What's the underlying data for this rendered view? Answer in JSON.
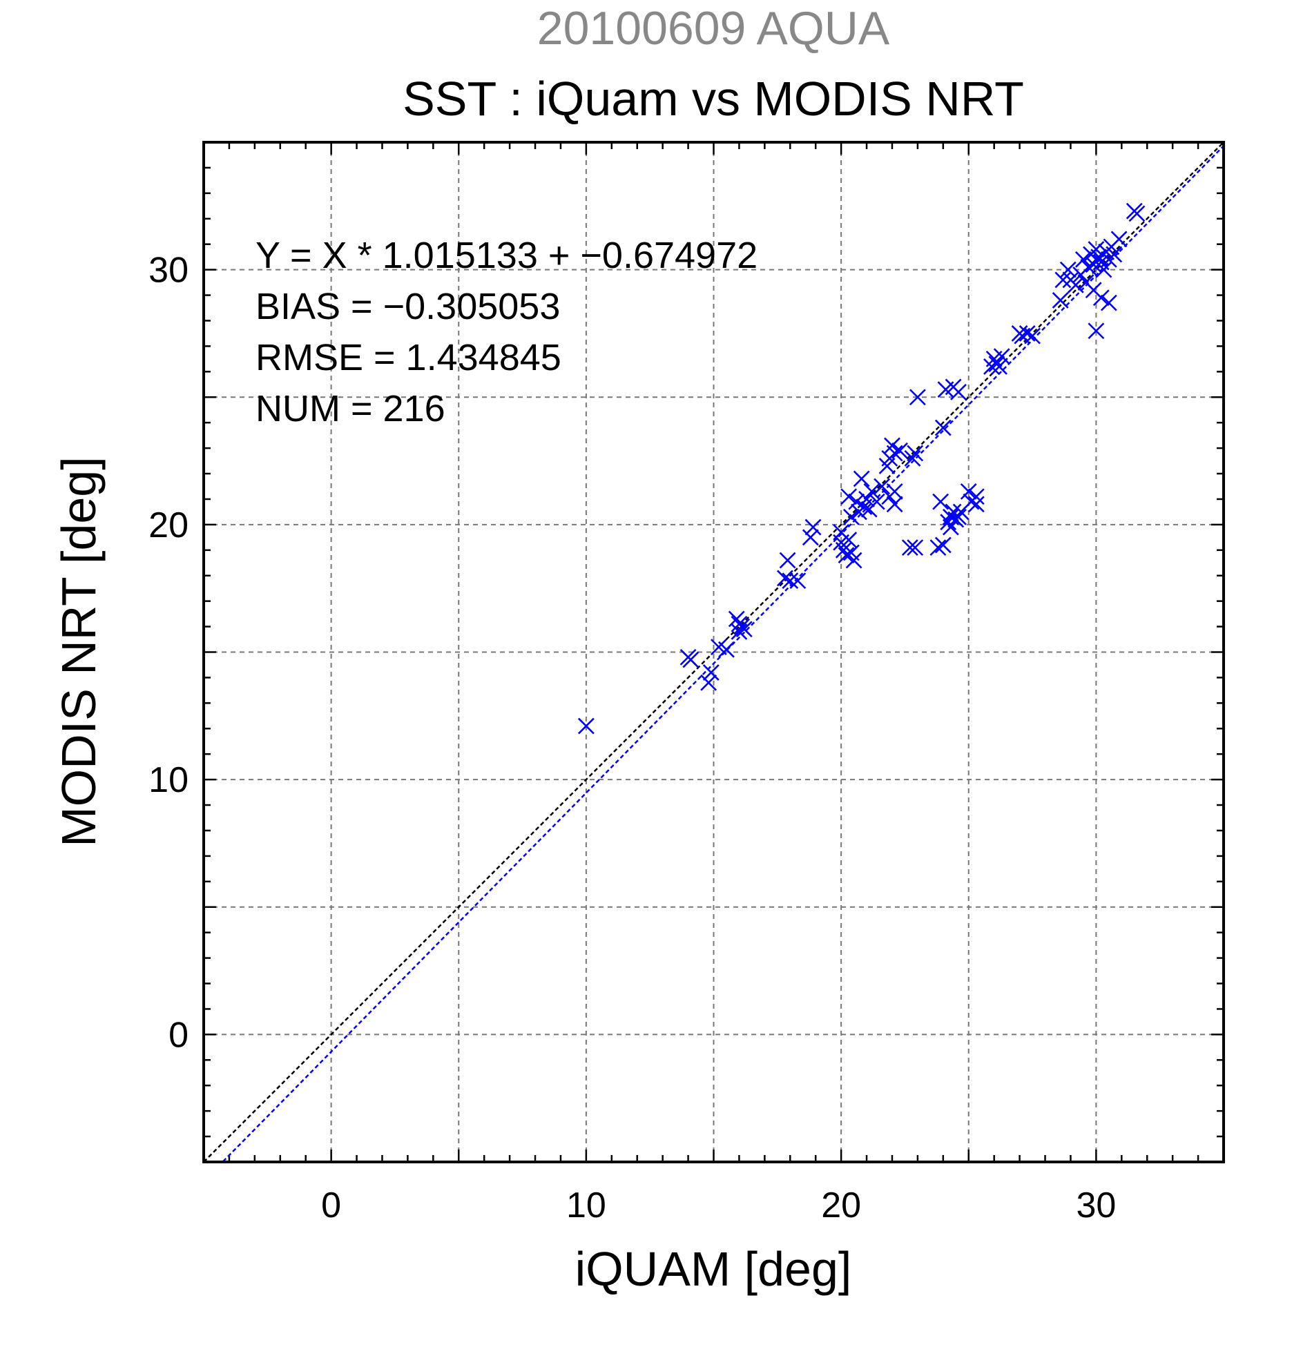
{
  "chart_data": {
    "type": "scatter",
    "suptitle": "20100609 AQUA",
    "title": "SST : iQuam vs MODIS NRT",
    "xlabel": "iQUAM [deg]",
    "ylabel": "MODIS NRT [deg]",
    "xlim": [
      -5,
      35
    ],
    "ylim": [
      -5,
      35
    ],
    "xticks": [
      0,
      10,
      20,
      30
    ],
    "yticks": [
      0,
      10,
      20,
      30
    ],
    "grid": true,
    "colors": {
      "points": "#0000ff",
      "fit_line": "#0000ff",
      "identity_line": "#000000",
      "suptitle": "#888888"
    },
    "stats": {
      "equation": "Y = X * 1.015133 + −0.674972",
      "bias": "BIAS = −0.305053",
      "rmse": "RMSE = 1.434845",
      "num": "NUM = 216"
    },
    "identity_line": {
      "slope": 1.0,
      "intercept": 0.0
    },
    "fit_line": {
      "slope": 1.015133,
      "intercept": -0.674972
    },
    "points": [
      [
        10.0,
        12.1
      ],
      [
        14.0,
        14.8
      ],
      [
        14.1,
        14.7
      ],
      [
        14.8,
        13.8
      ],
      [
        14.9,
        14.2
      ],
      [
        15.2,
        15.2
      ],
      [
        15.5,
        15.1
      ],
      [
        15.9,
        16.3
      ],
      [
        16.0,
        16.1
      ],
      [
        16.1,
        16.0
      ],
      [
        16.0,
        15.8
      ],
      [
        16.2,
        15.9
      ],
      [
        17.8,
        17.9
      ],
      [
        17.9,
        18.6
      ],
      [
        18.0,
        17.8
      ],
      [
        18.3,
        17.8
      ],
      [
        18.8,
        19.5
      ],
      [
        18.9,
        19.9
      ],
      [
        20.0,
        19.7
      ],
      [
        20.0,
        19.3
      ],
      [
        20.1,
        19.0
      ],
      [
        20.2,
        18.8
      ],
      [
        20.3,
        19.4
      ],
      [
        20.4,
        18.9
      ],
      [
        20.5,
        18.6
      ],
      [
        20.4,
        20.3
      ],
      [
        20.3,
        21.1
      ],
      [
        20.6,
        20.9
      ],
      [
        20.8,
        21.8
      ],
      [
        20.7,
        20.5
      ],
      [
        20.9,
        20.7
      ],
      [
        21.0,
        21.0
      ],
      [
        21.1,
        20.6
      ],
      [
        21.2,
        21.3
      ],
      [
        21.4,
        20.9
      ],
      [
        21.6,
        21.5
      ],
      [
        21.8,
        22.3
      ],
      [
        21.9,
        22.6
      ],
      [
        22.0,
        23.1
      ],
      [
        22.1,
        22.8
      ],
      [
        21.9,
        21.1
      ],
      [
        22.1,
        21.3
      ],
      [
        22.1,
        20.8
      ],
      [
        22.3,
        22.9
      ],
      [
        22.8,
        22.6
      ],
      [
        22.9,
        22.8
      ],
      [
        22.7,
        19.1
      ],
      [
        22.9,
        19.1
      ],
      [
        23.0,
        25.0
      ],
      [
        23.8,
        19.1
      ],
      [
        24.0,
        19.2
      ],
      [
        23.9,
        20.9
      ],
      [
        24.0,
        23.8
      ],
      [
        24.1,
        25.3
      ],
      [
        24.2,
        20.1
      ],
      [
        24.3,
        20.3
      ],
      [
        24.4,
        20.5
      ],
      [
        24.3,
        19.9
      ],
      [
        24.5,
        20.2
      ],
      [
        24.6,
        20.3
      ],
      [
        24.4,
        25.4
      ],
      [
        24.6,
        25.2
      ],
      [
        24.7,
        20.5
      ],
      [
        25.0,
        21.3
      ],
      [
        25.1,
        20.9
      ],
      [
        25.3,
        21.1
      ],
      [
        25.3,
        20.8
      ],
      [
        25.9,
        26.2
      ],
      [
        26.0,
        26.5
      ],
      [
        26.2,
        26.2
      ],
      [
        26.1,
        26.3
      ],
      [
        26.3,
        26.6
      ],
      [
        27.0,
        27.5
      ],
      [
        27.1,
        27.4
      ],
      [
        27.3,
        27.5
      ],
      [
        27.5,
        27.4
      ],
      [
        28.6,
        28.8
      ],
      [
        28.7,
        29.6
      ],
      [
        28.9,
        30.0
      ],
      [
        29.0,
        29.6
      ],
      [
        29.2,
        29.4
      ],
      [
        29.4,
        29.8
      ],
      [
        29.5,
        30.4
      ],
      [
        29.6,
        29.5
      ],
      [
        29.7,
        30.1
      ],
      [
        29.8,
        30.6
      ],
      [
        29.9,
        30.2
      ],
      [
        30.0,
        30.8
      ],
      [
        30.1,
        30.5
      ],
      [
        30.2,
        30.3
      ],
      [
        30.3,
        30.0
      ],
      [
        30.4,
        30.7
      ],
      [
        30.5,
        30.4
      ],
      [
        30.6,
        30.9
      ],
      [
        30.7,
        30.6
      ],
      [
        29.9,
        29.2
      ],
      [
        30.2,
        28.9
      ],
      [
        30.5,
        28.7
      ],
      [
        30.0,
        27.6
      ],
      [
        30.9,
        31.2
      ],
      [
        31.5,
        32.3
      ],
      [
        31.6,
        32.2
      ]
    ]
  }
}
